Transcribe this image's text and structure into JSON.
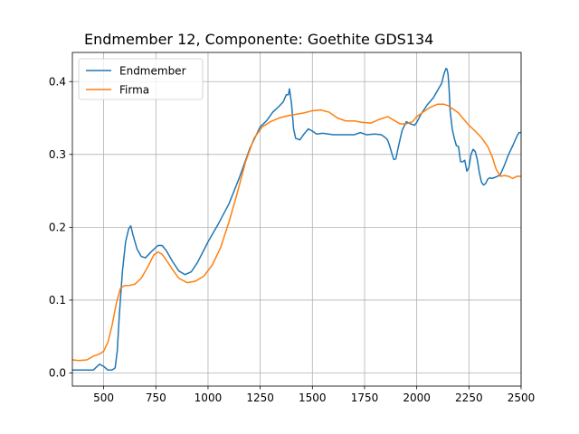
{
  "chart_data": {
    "type": "line",
    "title": "Endmember 12, Componente: Goethite GDS134",
    "xlabel": "",
    "ylabel": "",
    "xlim": [
      350,
      2500
    ],
    "ylim": [
      -0.018,
      0.44
    ],
    "x_ticks": [
      500,
      750,
      1000,
      1250,
      1500,
      1750,
      2000,
      2250,
      2500
    ],
    "x_tick_labels": [
      "500",
      "750",
      "1000",
      "1250",
      "1500",
      "1750",
      "2000",
      "2250",
      "2500"
    ],
    "y_ticks": [
      0.0,
      0.1,
      0.2,
      0.3,
      0.4
    ],
    "y_tick_labels": [
      "0.0",
      "0.1",
      "0.2",
      "0.3",
      "0.4"
    ],
    "grid": true,
    "legend_position": "upper-left",
    "series": [
      {
        "name": "Endmember",
        "color": "#1f77b4",
        "x": [
          350,
          400,
          450,
          465,
          480,
          500,
          520,
          540,
          555,
          565,
          575,
          590,
          605,
          620,
          630,
          640,
          660,
          680,
          700,
          730,
          760,
          780,
          800,
          830,
          860,
          890,
          920,
          950,
          1000,
          1050,
          1100,
          1150,
          1200,
          1250,
          1280,
          1310,
          1340,
          1360,
          1375,
          1385,
          1390,
          1400,
          1410,
          1420,
          1440,
          1460,
          1480,
          1500,
          1520,
          1550,
          1600,
          1650,
          1700,
          1730,
          1760,
          1800,
          1830,
          1850,
          1860,
          1870,
          1880,
          1890,
          1900,
          1910,
          1930,
          1950,
          1970,
          1990,
          2000,
          2020,
          2050,
          2080,
          2100,
          2120,
          2130,
          2140,
          2145,
          2150,
          2155,
          2160,
          2170,
          2180,
          2190,
          2200,
          2210,
          2220,
          2230,
          2240,
          2250,
          2260,
          2270,
          2280,
          2290,
          2300,
          2310,
          2320,
          2330,
          2340,
          2350,
          2360,
          2380,
          2400,
          2420,
          2440,
          2460,
          2480,
          2490,
          2500
        ],
        "y": [
          0.004,
          0.004,
          0.004,
          0.008,
          0.012,
          0.009,
          0.004,
          0.004,
          0.007,
          0.03,
          0.08,
          0.14,
          0.18,
          0.198,
          0.202,
          0.19,
          0.17,
          0.16,
          0.158,
          0.167,
          0.175,
          0.175,
          0.168,
          0.153,
          0.14,
          0.135,
          0.139,
          0.152,
          0.18,
          0.205,
          0.232,
          0.268,
          0.308,
          0.338,
          0.346,
          0.358,
          0.366,
          0.372,
          0.382,
          0.382,
          0.39,
          0.37,
          0.335,
          0.322,
          0.32,
          0.328,
          0.335,
          0.332,
          0.328,
          0.329,
          0.327,
          0.327,
          0.327,
          0.33,
          0.327,
          0.328,
          0.327,
          0.323,
          0.32,
          0.312,
          0.302,
          0.293,
          0.294,
          0.308,
          0.333,
          0.345,
          0.342,
          0.34,
          0.344,
          0.355,
          0.368,
          0.378,
          0.388,
          0.398,
          0.41,
          0.418,
          0.417,
          0.41,
          0.39,
          0.36,
          0.335,
          0.322,
          0.312,
          0.311,
          0.29,
          0.29,
          0.292,
          0.277,
          0.282,
          0.3,
          0.307,
          0.304,
          0.293,
          0.275,
          0.262,
          0.258,
          0.26,
          0.266,
          0.268,
          0.267,
          0.269,
          0.272,
          0.285,
          0.3,
          0.312,
          0.325,
          0.33,
          0.33
        ],
        "note_cap": true
      },
      {
        "name": "Firma",
        "color": "#ff7f0e",
        "x": [
          350,
          380,
          420,
          450,
          480,
          500,
          520,
          540,
          560,
          580,
          600,
          620,
          650,
          680,
          710,
          740,
          760,
          780,
          800,
          830,
          860,
          900,
          940,
          980,
          1020,
          1060,
          1100,
          1140,
          1180,
          1220,
          1260,
          1300,
          1340,
          1380,
          1420,
          1460,
          1500,
          1540,
          1580,
          1620,
          1660,
          1700,
          1740,
          1780,
          1820,
          1860,
          1890,
          1920,
          1950,
          1980,
          2000,
          2030,
          2060,
          2100,
          2130,
          2150,
          2170,
          2200,
          2220,
          2250,
          2280,
          2310,
          2340,
          2360,
          2380,
          2400,
          2420,
          2440,
          2460,
          2480,
          2500
        ],
        "y": [
          0.018,
          0.017,
          0.018,
          0.023,
          0.026,
          0.03,
          0.042,
          0.065,
          0.095,
          0.116,
          0.12,
          0.12,
          0.122,
          0.13,
          0.145,
          0.162,
          0.166,
          0.163,
          0.155,
          0.142,
          0.13,
          0.124,
          0.126,
          0.133,
          0.148,
          0.172,
          0.207,
          0.247,
          0.29,
          0.322,
          0.338,
          0.345,
          0.35,
          0.353,
          0.355,
          0.357,
          0.36,
          0.361,
          0.358,
          0.35,
          0.346,
          0.346,
          0.344,
          0.343,
          0.348,
          0.352,
          0.347,
          0.342,
          0.342,
          0.345,
          0.352,
          0.358,
          0.364,
          0.369,
          0.369,
          0.367,
          0.363,
          0.357,
          0.35,
          0.34,
          0.332,
          0.323,
          0.311,
          0.298,
          0.28,
          0.27,
          0.271,
          0.27,
          0.267,
          0.27,
          0.27
        ]
      }
    ]
  }
}
